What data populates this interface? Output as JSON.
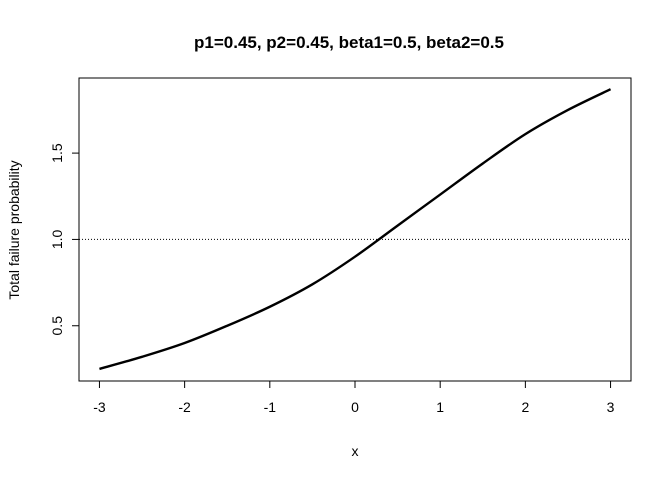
{
  "chart_data": {
    "type": "line",
    "title": "p1=0.45, p2=0.45, beta1=0.5, beta2=0.5",
    "xlabel": "x",
    "ylabel": "Total failure probability",
    "xlim": [
      -3.24,
      3.24
    ],
    "ylim": [
      0.18,
      1.935
    ],
    "x_ticks": [
      -3,
      -2,
      -1,
      0,
      1,
      2,
      3
    ],
    "y_ticks": [
      0.5,
      1.0,
      1.5
    ],
    "x_tick_labels": [
      "-3",
      "-2",
      "-1",
      "0",
      "1",
      "2",
      "3"
    ],
    "y_tick_labels": [
      "0.5",
      "1.0",
      "1.5"
    ],
    "grid": false,
    "reference_line": {
      "y": 1.0,
      "style": "dotted"
    },
    "series": [
      {
        "x": [
          -3.0,
          -2.5,
          -2.0,
          -1.5,
          -1.0,
          -0.5,
          0.0,
          0.5,
          1.0,
          1.5,
          2.0,
          2.5,
          3.0
        ],
        "y": [
          0.25,
          0.32,
          0.4,
          0.5,
          0.61,
          0.74,
          0.9,
          1.08,
          1.26,
          1.44,
          1.61,
          1.75,
          1.87
        ],
        "color": "#000000"
      }
    ]
  }
}
